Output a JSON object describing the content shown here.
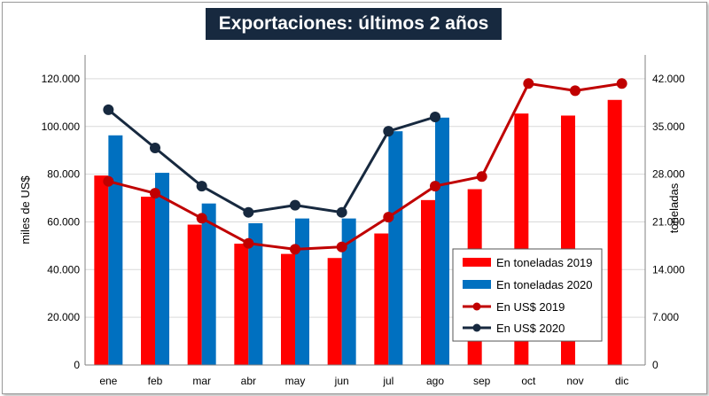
{
  "chart_data": {
    "type": "bar",
    "title": "Exportaciones: últimos 2 años",
    "categories": [
      "ene",
      "feb",
      "mar",
      "abr",
      "may",
      "jun",
      "jul",
      "ago",
      "sep",
      "oct",
      "nov",
      "dic"
    ],
    "ylabel_left": "miles de US$",
    "ylabel_right": "toneladas",
    "ylim_left": [
      0,
      130000
    ],
    "ylim_right": [
      0,
      45500
    ],
    "yticks_left": [
      "0",
      "20.000",
      "40.000",
      "60.000",
      "80.000",
      "100.000",
      "120.000"
    ],
    "yticks_right": [
      "0",
      "7.000",
      "14.000",
      "21.000",
      "28.000",
      "35.000",
      "42.000"
    ],
    "bar_series": [
      {
        "name": "En toneladas 2019",
        "axis": "right",
        "color": "#ff0000",
        "values": [
          27800,
          24700,
          20600,
          17800,
          16300,
          15700,
          19300,
          24200,
          25800,
          36900,
          36600,
          38900
        ]
      },
      {
        "name": "En toneladas 2020",
        "axis": "right",
        "color": "#0070c0",
        "values": [
          33700,
          28200,
          23700,
          20800,
          21500,
          21500,
          34300,
          36300,
          null,
          null,
          null,
          null
        ]
      }
    ],
    "line_series": [
      {
        "name": "En US$ 2019",
        "axis": "left",
        "color": "#c00000",
        "values": [
          77000,
          72000,
          61500,
          51000,
          48500,
          49500,
          62000,
          75000,
          79000,
          118000,
          115000,
          118000
        ]
      },
      {
        "name": "En US$ 2020",
        "axis": "left",
        "color": "#17293f",
        "values": [
          107000,
          91000,
          75000,
          64000,
          67000,
          64000,
          98000,
          104000,
          null,
          null,
          null,
          null
        ]
      }
    ],
    "legend": {
      "position": "lower-right",
      "items": [
        "En toneladas 2019",
        "En toneladas 2020",
        "En US$ 2019",
        "En US$ 2020"
      ]
    },
    "grid": "horizontal"
  }
}
